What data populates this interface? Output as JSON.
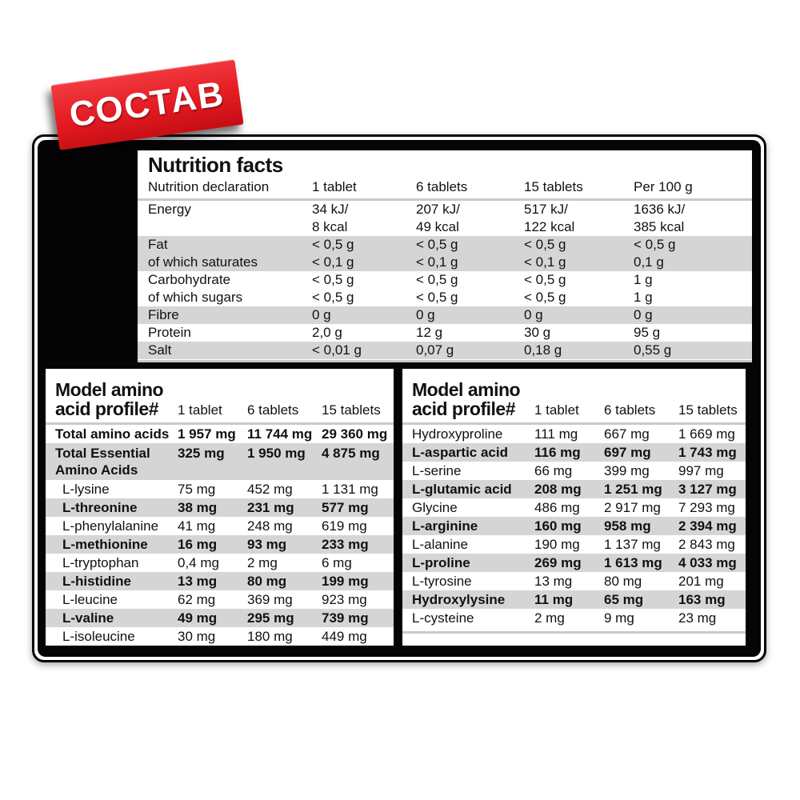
{
  "banner": {
    "label": "СОСТАВ",
    "color": "#e41b22"
  },
  "colors": {
    "board": "#050505",
    "row_shade": "#d5d5d5",
    "rule": "#c9c9c9"
  },
  "nutrition_facts": {
    "title": "Nutrition facts",
    "header": {
      "label": "Nutrition declaration",
      "cols": [
        "1 tablet",
        "6 tablets",
        "15 tablets",
        "Per 100 g"
      ]
    },
    "rows": [
      {
        "shade": false,
        "lines": [
          {
            "label": "Energy",
            "values": [
              "34 kJ/",
              "207 kJ/",
              "517 kJ/",
              "1636 kJ/"
            ]
          },
          {
            "label": "",
            "values": [
              "8 kcal",
              "49 kcal",
              "122 kcal",
              "385 kcal"
            ]
          }
        ]
      },
      {
        "shade": true,
        "lines": [
          {
            "label": "Fat",
            "values": [
              "< 0,5 g",
              "< 0,5 g",
              "< 0,5 g",
              "< 0,5 g"
            ]
          },
          {
            "label": "of which saturates",
            "values": [
              "< 0,1 g",
              "< 0,1 g",
              "< 0,1 g",
              "0,1 g"
            ]
          }
        ]
      },
      {
        "shade": false,
        "lines": [
          {
            "label": "Carbohydrate",
            "values": [
              "< 0,5 g",
              "< 0,5 g",
              "< 0,5 g",
              "1 g"
            ]
          },
          {
            "label": "of which sugars",
            "values": [
              "< 0,5 g",
              "< 0,5 g",
              "< 0,5 g",
              "1 g"
            ]
          }
        ]
      },
      {
        "shade": true,
        "lines": [
          {
            "label": "Fibre",
            "values": [
              "0 g",
              "0 g",
              "0 g",
              "0 g"
            ]
          }
        ]
      },
      {
        "shade": false,
        "lines": [
          {
            "label": "Protein",
            "values": [
              "2,0 g",
              "12 g",
              "30 g",
              "95 g"
            ]
          }
        ]
      },
      {
        "shade": true,
        "lines": [
          {
            "label": "Salt",
            "values": [
              "< 0,01 g",
              "0,07 g",
              "0,18 g",
              "0,55 g"
            ]
          }
        ]
      }
    ]
  },
  "amino_left": {
    "title_lines": [
      "Model amino",
      "acid profile#"
    ],
    "cols": [
      "1 tablet",
      "6 tablets",
      "15 tablets"
    ],
    "rows": [
      {
        "label": "Total amino acids",
        "values": [
          "1 957 mg",
          "11 744 mg",
          "29 360 mg"
        ],
        "shade": false,
        "bold": true,
        "indent": false
      },
      {
        "label": "Total Essential\nAmino Acids",
        "values": [
          "325 mg",
          "1 950 mg",
          "4 875 mg"
        ],
        "shade": true,
        "bold": true,
        "indent": false,
        "tall": true
      },
      {
        "label": "L-lysine",
        "values": [
          "75 mg",
          "452 mg",
          "1 131 mg"
        ],
        "shade": false,
        "bold": false,
        "indent": true
      },
      {
        "label": "L-threonine",
        "values": [
          "38 mg",
          "231 mg",
          "577 mg"
        ],
        "shade": true,
        "bold": true,
        "indent": true
      },
      {
        "label": "L-phenylalanine",
        "values": [
          "41 mg",
          "248 mg",
          "619 mg"
        ],
        "shade": false,
        "bold": false,
        "indent": true
      },
      {
        "label": "L-methionine",
        "values": [
          "16 mg",
          "93 mg",
          "233 mg"
        ],
        "shade": true,
        "bold": true,
        "indent": true
      },
      {
        "label": "L-tryptophan",
        "values": [
          "0,4 mg",
          "2 mg",
          "6 mg"
        ],
        "shade": false,
        "bold": false,
        "indent": true
      },
      {
        "label": "L-histidine",
        "values": [
          "13 mg",
          "80 mg",
          "199 mg"
        ],
        "shade": true,
        "bold": true,
        "indent": true
      },
      {
        "label": "L-leucine",
        "values": [
          "62 mg",
          "369 mg",
          "923 mg"
        ],
        "shade": false,
        "bold": false,
        "indent": true
      },
      {
        "label": "L-valine",
        "values": [
          "49 mg",
          "295 mg",
          "739 mg"
        ],
        "shade": true,
        "bold": true,
        "indent": true
      },
      {
        "label": "L-isoleucine",
        "values": [
          "30 mg",
          "180 mg",
          "449 mg"
        ],
        "shade": false,
        "bold": false,
        "indent": true
      }
    ]
  },
  "amino_right": {
    "title_lines": [
      "Model amino",
      "acid profile#"
    ],
    "cols": [
      "1 tablet",
      "6 tablets",
      "15 tablets"
    ],
    "rows": [
      {
        "label": "Hydroxyproline",
        "values": [
          "111 mg",
          "667 mg",
          "1 669 mg"
        ],
        "shade": false,
        "bold": false,
        "indent": false
      },
      {
        "label": "L-aspartic acid",
        "values": [
          "116 mg",
          "697 mg",
          "1 743 mg"
        ],
        "shade": true,
        "bold": true,
        "indent": false
      },
      {
        "label": "L-serine",
        "values": [
          "66 mg",
          "399 mg",
          "997 mg"
        ],
        "shade": false,
        "bold": false,
        "indent": false
      },
      {
        "label": "L-glutamic acid",
        "values": [
          "208 mg",
          "1 251 mg",
          "3 127 mg"
        ],
        "shade": true,
        "bold": true,
        "indent": false
      },
      {
        "label": "Glycine",
        "values": [
          "486 mg",
          "2 917 mg",
          "7 293 mg"
        ],
        "shade": false,
        "bold": false,
        "indent": false
      },
      {
        "label": "L-arginine",
        "values": [
          "160 mg",
          "958 mg",
          "2 394 mg"
        ],
        "shade": true,
        "bold": true,
        "indent": false
      },
      {
        "label": "L-alanine",
        "values": [
          "190 mg",
          "1 137 mg",
          "2 843 mg"
        ],
        "shade": false,
        "bold": false,
        "indent": false
      },
      {
        "label": "L-proline",
        "values": [
          "269 mg",
          "1 613 mg",
          "4 033 mg"
        ],
        "shade": true,
        "bold": true,
        "indent": false
      },
      {
        "label": "L-tyrosine",
        "values": [
          "13 mg",
          "80 mg",
          "201 mg"
        ],
        "shade": false,
        "bold": false,
        "indent": false
      },
      {
        "label": "Hydroxylysine",
        "values": [
          "11 mg",
          "65 mg",
          "163 mg"
        ],
        "shade": true,
        "bold": true,
        "indent": false
      },
      {
        "label": "L-cysteine",
        "values": [
          "2 mg",
          "9 mg",
          "23 mg"
        ],
        "shade": false,
        "bold": false,
        "indent": false
      }
    ]
  }
}
